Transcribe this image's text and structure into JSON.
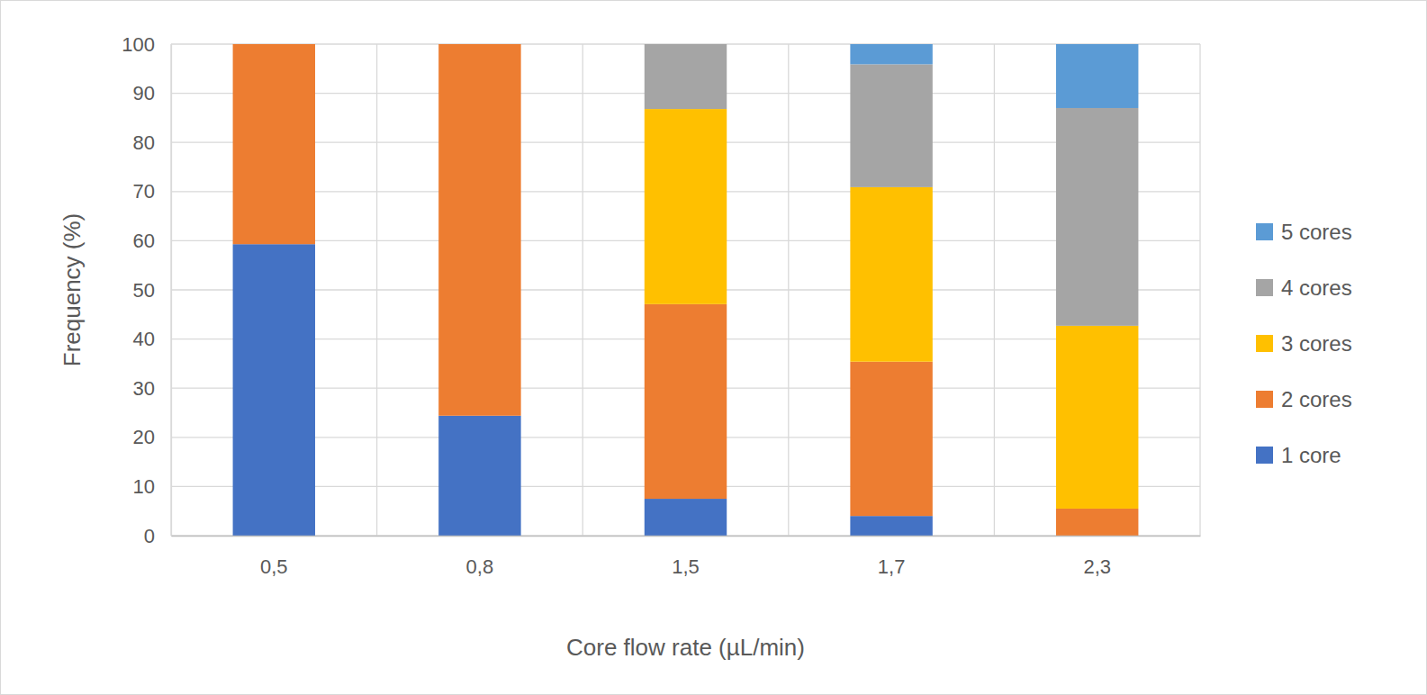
{
  "chart_data": {
    "type": "bar",
    "stacked": true,
    "grid": true,
    "legend": "right",
    "x_label": "Core flow rate (µL/min)",
    "y_label": "Frequency (%)",
    "categories": [
      "0,5",
      "0,8",
      "1,5",
      "1,7",
      "2,3"
    ],
    "series": [
      {
        "name": "1 core",
        "color": "#4472c4",
        "values": [
          59.3,
          24.4,
          7.5,
          4.0,
          0
        ]
      },
      {
        "name": "2 cores",
        "color": "#ed7d31",
        "values": [
          40.7,
          75.6,
          39.6,
          31.4,
          5.5
        ]
      },
      {
        "name": "3 cores",
        "color": "#ffc000",
        "values": [
          0,
          0,
          39.7,
          35.5,
          37.2
        ]
      },
      {
        "name": "4 cores",
        "color": "#a5a5a5",
        "values": [
          0,
          0,
          13.2,
          25.0,
          44.3
        ]
      },
      {
        "name": "5 cores",
        "color": "#5b9bd5",
        "values": [
          0,
          0,
          0,
          4.1,
          13.0
        ]
      }
    ],
    "ylim": [
      0,
      100
    ],
    "yticks": [
      0,
      10,
      20,
      30,
      40,
      50,
      60,
      70,
      80,
      90,
      100
    ]
  }
}
